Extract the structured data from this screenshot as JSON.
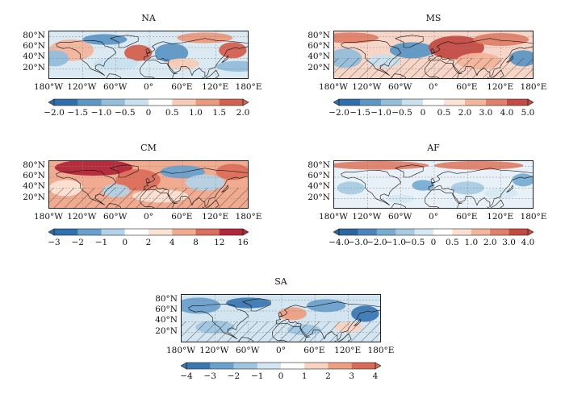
{
  "lat_labels": [
    "80°N",
    "60°N",
    "40°N",
    "20°N"
  ],
  "lon_labels": [
    "180°W",
    "120°W",
    "60°W",
    "0°",
    "60°E",
    "120°E",
    "180°E"
  ],
  "panels": [
    {
      "id": "na",
      "title": "NA",
      "hatched": false,
      "colorbar_ticks": [
        "−2.0",
        "−1.5",
        "−1.0",
        "−0.5",
        "0",
        "0.5",
        "1.0",
        "1.5",
        "2.0"
      ],
      "colorbar_colors": [
        "#2f6fae",
        "#5d97c6",
        "#93bedc",
        "#c9e0ee",
        "#ffffff",
        "#f7cbb5",
        "#ec9a7c",
        "#d4604f"
      ]
    },
    {
      "id": "ms",
      "title": "MS",
      "hatched": true,
      "colorbar_ticks": [
        "−2.0",
        "−1.5",
        "−1.0",
        "−0.5",
        "0",
        "0.5",
        "2.0",
        "3.0",
        "4.0",
        "5.0"
      ],
      "colorbar_colors": [
        "#2f6fae",
        "#5d97c6",
        "#93bedc",
        "#c9e0ee",
        "#ffffff",
        "#fbe3d6",
        "#f3b59b",
        "#e1806a",
        "#c44a44"
      ]
    },
    {
      "id": "cm",
      "title": "CM",
      "hatched": true,
      "colorbar_ticks": [
        "−3",
        "−2",
        "−1",
        "0",
        "2",
        "4",
        "8",
        "12",
        "16"
      ],
      "colorbar_colors": [
        "#2f6fae",
        "#6aa0cc",
        "#b3d3e8",
        "#ffffff",
        "#fbe3d6",
        "#f1ab90",
        "#dc6f5c",
        "#b2273a"
      ]
    },
    {
      "id": "af",
      "title": "AF",
      "hatched": false,
      "colorbar_ticks": [
        "−4.0",
        "−3.0",
        "−2.0",
        "−1.0",
        "−0.5",
        "0",
        "0.5",
        "1.0",
        "2.0",
        "3.0",
        "4.0"
      ],
      "colorbar_colors": [
        "#2a669f",
        "#4a86bd",
        "#79acd3",
        "#a8cbe3",
        "#d6e8f2",
        "#ffffff",
        "#fbe0d1",
        "#f3b59b",
        "#e1806a",
        "#c44a44"
      ]
    },
    {
      "id": "sa",
      "title": "SA",
      "hatched": true,
      "colorbar_ticks": [
        "−4",
        "−3",
        "−2",
        "−1",
        "0",
        "1",
        "2",
        "3",
        "4"
      ],
      "colorbar_colors": [
        "#3b78b2",
        "#6ca1cc",
        "#9fc5e1",
        "#d3e5f1",
        "#ffffff",
        "#f7d3c0",
        "#ee9f82",
        "#d96a57"
      ]
    }
  ]
}
